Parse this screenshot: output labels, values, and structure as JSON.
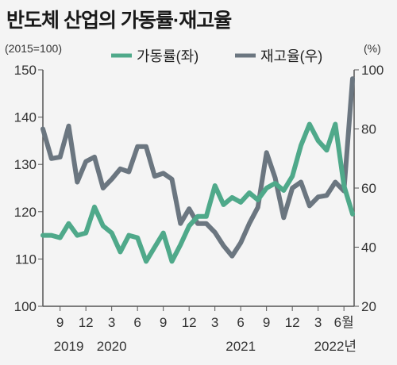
{
  "title": "반도체 산업의 가동률·재고율",
  "left_unit": "(2015=100)",
  "right_unit": "(%)",
  "colors": {
    "operation": "#4fa98a",
    "inventory": "#6b7680",
    "axis": "#555555",
    "bg": "#f4f4f4"
  },
  "chart_data": {
    "type": "line",
    "title": "반도체 산업의 가동률·재고율",
    "x": [
      "2019-07",
      "2019-08",
      "2019-09",
      "2019-10",
      "2019-11",
      "2019-12",
      "2020-01",
      "2020-02",
      "2020-03",
      "2020-04",
      "2020-05",
      "2020-06",
      "2020-07",
      "2020-08",
      "2020-09",
      "2020-10",
      "2020-11",
      "2020-12",
      "2021-01",
      "2021-02",
      "2021-03",
      "2021-04",
      "2021-05",
      "2021-06",
      "2021-07",
      "2021-08",
      "2021-09",
      "2021-10",
      "2021-11",
      "2021-12",
      "2022-01",
      "2022-02",
      "2022-03",
      "2022-04",
      "2022-05",
      "2022-06",
      "2022-07"
    ],
    "x_tick_labels": [
      {
        "label": "9",
        "x": "2019-09"
      },
      {
        "label": "12",
        "x": "2019-12"
      },
      {
        "label": "3",
        "x": "2020-03"
      },
      {
        "label": "6",
        "x": "2020-06"
      },
      {
        "label": "9",
        "x": "2020-09"
      },
      {
        "label": "12",
        "x": "2020-12"
      },
      {
        "label": "3",
        "x": "2021-03"
      },
      {
        "label": "6",
        "x": "2021-06"
      },
      {
        "label": "9",
        "x": "2021-09"
      },
      {
        "label": "12",
        "x": "2021-12"
      },
      {
        "label": "3",
        "x": "2022-03"
      },
      {
        "label": "6월",
        "x": "2022-06"
      }
    ],
    "year_labels": [
      {
        "label": "2019",
        "x": "2019-10"
      },
      {
        "label": "2020",
        "x": "2020-03"
      },
      {
        "label": "2021",
        "x": "2021-06"
      },
      {
        "label": "2022년",
        "x": "2022-05"
      }
    ],
    "left_axis": {
      "label": "(2015=100)",
      "range": [
        100,
        150
      ],
      "ticks": [
        100,
        110,
        120,
        130,
        140,
        150
      ]
    },
    "right_axis": {
      "label": "(%)",
      "range": [
        20,
        100
      ],
      "ticks": [
        20,
        40,
        60,
        80,
        100
      ]
    },
    "series": [
      {
        "name": "가동률(좌)",
        "axis": "left",
        "color": "#4fa98a",
        "values": [
          115,
          115,
          114.5,
          117.5,
          115,
          115.5,
          121,
          117,
          115.5,
          111.5,
          115,
          114.5,
          109.5,
          112.5,
          115.5,
          109.5,
          113,
          117,
          119,
          119,
          125.5,
          121.5,
          123,
          122,
          124,
          122.5,
          125,
          126,
          124.5,
          127.5,
          134,
          138.5,
          135,
          133,
          138.5,
          125.5,
          119.5
        ]
      },
      {
        "name": "재고율(우)",
        "axis": "right",
        "color": "#6b7680",
        "values": [
          80,
          70,
          70.5,
          81,
          62,
          69,
          70.5,
          60,
          63,
          66.5,
          65.5,
          74,
          74,
          64,
          65,
          63,
          48,
          53,
          48,
          48,
          45,
          40.5,
          37,
          41.5,
          48,
          53.5,
          72,
          63.5,
          50,
          60,
          62,
          54,
          57,
          57.5,
          62,
          59,
          97
        ]
      }
    ]
  }
}
